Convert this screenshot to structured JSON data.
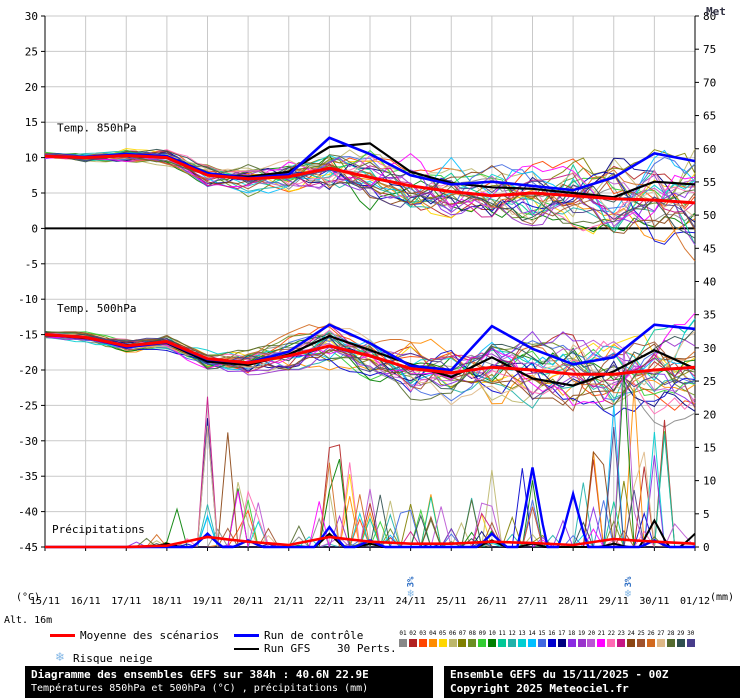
{
  "watermark": "Met",
  "altitude_label": "Alt. 16m",
  "axes": {
    "left_unit": "(°C)",
    "right_unit": "(mm)",
    "left_ticks": [
      30,
      25,
      20,
      15,
      10,
      5,
      0,
      -5,
      -10,
      -15,
      -20,
      -25,
      -30,
      -35,
      -40,
      -45
    ],
    "right_ticks": [
      80,
      75,
      70,
      65,
      60,
      55,
      50,
      45,
      40,
      35,
      30,
      25,
      20,
      15,
      10,
      5,
      0
    ]
  },
  "legend": {
    "mean": {
      "label": "Moyenne des scénarios",
      "color": "#ff0000"
    },
    "control": {
      "label": "Run de contrôle",
      "color": "#0000ff"
    },
    "gfs": {
      "label": "Run GFS",
      "color": "#000000"
    },
    "perts": {
      "label": "30 Perts.",
      "numbers": [
        "01",
        "02",
        "03",
        "04",
        "05",
        "06",
        "07",
        "08",
        "09",
        "10",
        "11",
        "12",
        "13",
        "14",
        "15",
        "16",
        "17",
        "18",
        "19",
        "20",
        "21",
        "22",
        "23",
        "24",
        "25",
        "26",
        "27",
        "28",
        "29",
        "30"
      ]
    },
    "snow_risk": {
      "label": "Risque neige",
      "glyph": "❄",
      "color": "#85b8e6",
      "text_color": "#2f6fc4"
    }
  },
  "snow_markers": [
    {
      "day": 9.0,
      "label": "3%"
    },
    {
      "day": 14.35,
      "label": "3%"
    }
  ],
  "footer": {
    "title": "Diagramme des ensembles GEFS sur 384h : 40.6N 22.9E",
    "subtitle": "Températures 850hPa et 500hPa (°C) , précipitations (mm)",
    "run_info": "Ensemble GEFS du 15/11/2025 - 00Z",
    "copyright": "Copyright 2025 Meteociel.fr"
  },
  "chart_data": {
    "type": "line",
    "title": "Diagramme des ensembles GEFS sur 384h : 40.6N 22.9E",
    "x": [
      "15/11",
      "16/11",
      "17/11",
      "18/11",
      "19/11",
      "20/11",
      "21/11",
      "22/11",
      "23/11",
      "24/11",
      "25/11",
      "26/11",
      "27/11",
      "28/11",
      "29/11",
      "30/11",
      "01/12"
    ],
    "ylim_left": [
      -45,
      30
    ],
    "ylim_right": [
      0,
      80
    ],
    "grid": true,
    "members_count": 30,
    "member_colors": [
      "#888888",
      "#b22222",
      "#ff4500",
      "#ff8c00",
      "#ffd700",
      "#bdb76b",
      "#808000",
      "#6b8e23",
      "#32cd32",
      "#008000",
      "#00c896",
      "#20b2aa",
      "#00ced1",
      "#00bfff",
      "#4169e1",
      "#0000cd",
      "#000080",
      "#8a2be2",
      "#9932cc",
      "#ba55d3",
      "#ff00ff",
      "#ff69b4",
      "#c71585",
      "#8b4513",
      "#a0522d",
      "#d2691e",
      "#deb887",
      "#556b2f",
      "#2f4f4f",
      "#483d8b"
    ],
    "bands": {
      "t850": {
        "label": "Temp. 850hPa",
        "mean": [
          10.2,
          10.0,
          10.3,
          10.0,
          7.5,
          7.0,
          7.3,
          8.5,
          7.2,
          6.0,
          5.2,
          4.6,
          5.0,
          4.6,
          4.2,
          4.0,
          3.6
        ],
        "control": [
          10.2,
          10.1,
          10.5,
          10.2,
          7.8,
          7.1,
          7.6,
          12.8,
          10.5,
          7.5,
          6.2,
          6.6,
          6.0,
          5.4,
          7.2,
          10.6,
          9.5
        ],
        "gfs": [
          10.2,
          10.0,
          10.4,
          10.1,
          7.6,
          7.3,
          8.0,
          11.5,
          12.0,
          8.0,
          6.4,
          5.8,
          5.6,
          5.0,
          4.4,
          6.6,
          6.2
        ],
        "spread": [
          0.5,
          0.6,
          0.9,
          1.1,
          1.6,
          1.9,
          2.3,
          3.4,
          4.0,
          4.0,
          4.2,
          4.6,
          5.0,
          5.2,
          5.6,
          5.8,
          6.2
        ]
      },
      "t500": {
        "label": "Temp. 500hPa",
        "mean": [
          -15.0,
          -15.4,
          -16.6,
          -16.0,
          -18.4,
          -19.0,
          -18.0,
          -16.6,
          -18.0,
          -19.8,
          -20.4,
          -19.6,
          -20.0,
          -20.6,
          -20.6,
          -20.0,
          -19.6
        ],
        "control": [
          -15.0,
          -15.4,
          -16.8,
          -16.1,
          -18.5,
          -19.0,
          -17.4,
          -13.6,
          -16.2,
          -19.4,
          -20.0,
          -13.8,
          -17.0,
          -19.2,
          -18.2,
          -13.6,
          -14.2
        ],
        "gfs": [
          -15.0,
          -15.5,
          -16.5,
          -16.2,
          -18.8,
          -19.3,
          -17.8,
          -15.2,
          -17.2,
          -19.2,
          -21.0,
          -18.2,
          -21.2,
          -22.2,
          -20.2,
          -17.2,
          -19.8
        ],
        "spread": [
          0.5,
          0.7,
          1.0,
          1.1,
          1.6,
          2.0,
          2.6,
          3.2,
          3.2,
          3.6,
          4.0,
          4.6,
          5.0,
          5.6,
          5.6,
          6.4,
          6.8
        ]
      },
      "precip": {
        "label": "Précipitations",
        "mean": [
          0,
          0,
          0,
          0.2,
          1.5,
          0.8,
          0.3,
          1.5,
          0.8,
          0.5,
          0.5,
          0.8,
          0.6,
          0.3,
          1.2,
          0.8,
          0.5
        ],
        "control": [
          0,
          0,
          0,
          0,
          2,
          1,
          0,
          3,
          1,
          0,
          0,
          2,
          12,
          8,
          0,
          1,
          0
        ],
        "gfs": [
          0,
          0,
          0,
          0.5,
          2,
          1,
          0,
          2,
          0.5,
          0,
          0,
          1,
          0.5,
          0,
          0.5,
          4,
          2
        ],
        "wet": [
          0,
          0,
          0,
          0.3,
          0.8,
          0.5,
          0.2,
          0.7,
          0.5,
          0.4,
          0.4,
          0.5,
          0.5,
          0.3,
          0.6,
          0.5,
          0.4
        ],
        "max_mm": [
          0,
          0,
          0,
          3,
          26,
          9,
          3,
          18,
          9,
          7,
          9,
          12,
          12,
          6,
          34,
          25,
          15
        ]
      }
    }
  }
}
